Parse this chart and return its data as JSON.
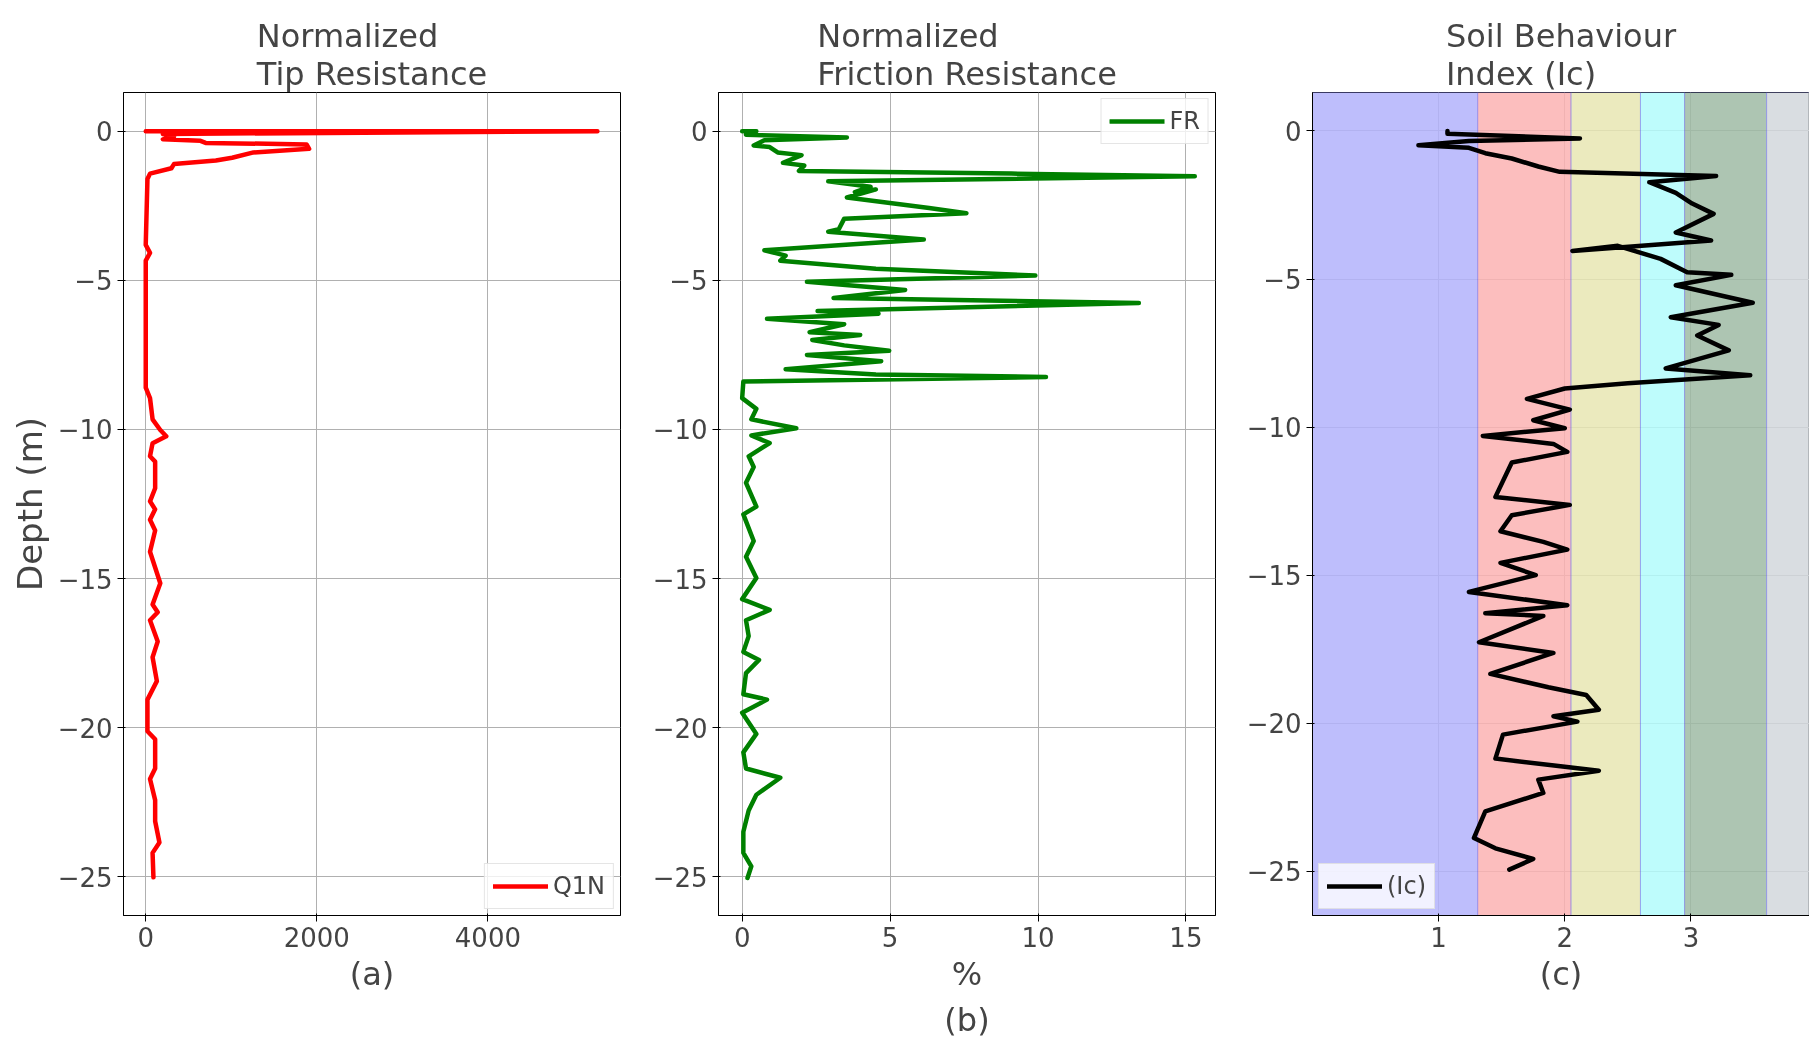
{
  "chart_data": [
    {
      "type": "line",
      "title": "Normalized\nTip Resistance",
      "ylabel": "Depth (m)",
      "xlim": [
        -260,
        5550
      ],
      "xticks": [
        0,
        2000,
        4000
      ],
      "ylim": [
        -26.3,
        1.3
      ],
      "yticks": [
        0,
        {
          "value": -5,
          "label": "−5"
        },
        {
          "value": -10,
          "label": "−10"
        },
        {
          "value": -15,
          "label": "−15"
        },
        {
          "value": -20,
          "label": "−20"
        },
        {
          "value": -25,
          "label": "−25"
        }
      ],
      "grid": true,
      "legend": "bottom right",
      "line_style": "solid",
      "marker": "none",
      "annotations": [
        "(a)"
      ],
      "series": [
        {
          "name": "Q1N",
          "color": "#ff0000",
          "x": [
            0,
            5280,
            200,
            330,
            200,
            640,
            700,
            1880,
            1910,
            1260,
            1010,
            820,
            330,
            300,
            50,
            20,
            0,
            50,
            0,
            0,
            50,
            80,
            170,
            240,
            80,
            50,
            110,
            110,
            50,
            110,
            50,
            110,
            50,
            110,
            170,
            80,
            140,
            50,
            140,
            80,
            130,
            20,
            20,
            110,
            110,
            50,
            110,
            110,
            160,
            80,
            90
          ],
          "values": [
            0,
            0,
            -0.09,
            -0.18,
            -0.27,
            -0.32,
            -0.39,
            -0.44,
            -0.59,
            -0.71,
            -0.89,
            -0.98,
            -1.1,
            -1.24,
            -1.42,
            -1.6,
            -3.81,
            -4.08,
            -4.34,
            -8.6,
            -8.95,
            -9.66,
            -10.02,
            -10.23,
            -10.46,
            -10.9,
            -11.08,
            -11.97,
            -12.41,
            -12.68,
            -13.03,
            -13.39,
            -14.1,
            -14.63,
            -15.16,
            -15.87,
            -16.13,
            -16.4,
            -17.11,
            -17.64,
            -18.44,
            -19.06,
            -20.12,
            -20.39,
            -21.37,
            -21.72,
            -22.43,
            -23.14,
            -23.85,
            -24.2,
            -25.02
          ]
        }
      ]
    },
    {
      "type": "line",
      "title": "Normalized\nFriction Resistance",
      "xlabel": "%",
      "xlim": [
        -0.8,
        16.0
      ],
      "xticks": [
        0,
        5,
        10,
        15
      ],
      "ylim": [
        -26.3,
        1.3
      ],
      "yticks": [
        0,
        {
          "value": -5,
          "label": "−5"
        },
        {
          "value": -10,
          "label": "−10"
        },
        {
          "value": -15,
          "label": "−15"
        },
        {
          "value": -20,
          "label": "−20"
        },
        {
          "value": -25,
          "label": "−25"
        }
      ],
      "grid": true,
      "legend": "top right",
      "line_style": "solid",
      "marker": "none",
      "annotations": [
        "(b)"
      ],
      "series": [
        {
          "name": "FR",
          "color": "#008000",
          "x": [
            0,
            0.48,
            0.13,
            3.54,
            0.75,
            0.39,
            0.93,
            1.2,
            2.01,
            1.38,
            2.1,
            1.92,
            9.1,
            15.3,
            2.91,
            4.34,
            3.81,
            4.52,
            3.54,
            6.32,
            7.58,
            3.45,
            3.27,
            2.91,
            6.14,
            0.75,
            1.47,
            1.29,
            4.52,
            9.91,
            2.19,
            5.51,
            3.09,
            13.41,
            2.55,
            4.61,
            0.84,
            3.45,
            2.28,
            3.99,
            2.37,
            3.45,
            4.97,
            2.19,
            4.7,
            1.47,
            4.52,
            10.27,
            0.04,
            0,
            0.48,
            0.31,
            1.83,
            0.31,
            0.93,
            0.22,
            0.39,
            0.13,
            0.48,
            0.04,
            0.39,
            0.13,
            0.48,
            0,
            0.93,
            0.13,
            0.22,
            0.04,
            0.57,
            0.13,
            0.04,
            0.84,
            0,
            0.48,
            0.04,
            0.13,
            1.29,
            0.48,
            0.22,
            0.04,
            0.04,
            0.31,
            0.18
          ],
          "values": [
            0,
            0,
            -0.12,
            -0.21,
            -0.3,
            -0.48,
            -0.53,
            -0.71,
            -0.8,
            -1.06,
            -1.15,
            -1.33,
            -1.42,
            -1.51,
            -1.68,
            -1.86,
            -2.04,
            -1.95,
            -2.22,
            -2.57,
            -2.75,
            -2.93,
            -3.28,
            -3.37,
            -3.63,
            -3.99,
            -4.17,
            -4.34,
            -4.61,
            -4.84,
            -5.05,
            -5.32,
            -5.59,
            -5.76,
            -6.03,
            -6.12,
            -6.29,
            -6.47,
            -6.74,
            -6.83,
            -7.0,
            -7.18,
            -7.36,
            -7.5,
            -7.71,
            -7.98,
            -8.16,
            -8.24,
            -8.39,
            -8.95,
            -9.31,
            -9.66,
            -9.96,
            -10.2,
            -10.46,
            -10.9,
            -11.26,
            -11.79,
            -12.59,
            -12.85,
            -13.74,
            -14.27,
            -14.98,
            -15.69,
            -16.05,
            -16.4,
            -16.93,
            -17.46,
            -17.73,
            -18.17,
            -18.88,
            -19.06,
            -19.5,
            -20.21,
            -20.83,
            -21.37,
            -21.68,
            -22.25,
            -22.78,
            -23.49,
            -24.2,
            -24.65,
            -25.04
          ]
        }
      ]
    },
    {
      "type": "line",
      "title": "Soil Behaviour\nIndex (Ic)",
      "xlim": [
        0.0,
        3.94
      ],
      "xticks": [
        1,
        2,
        3
      ],
      "ylim": [
        -26.5,
        1.3
      ],
      "yticks": [
        0,
        {
          "value": -5,
          "label": "−5"
        },
        {
          "value": -10,
          "label": "−10"
        },
        {
          "value": -15,
          "label": "−15"
        },
        {
          "value": -20,
          "label": "−20"
        },
        {
          "value": -25,
          "label": "−25"
        }
      ],
      "grid": true,
      "legend": "bottom left",
      "line_style": "solid",
      "marker": "none",
      "annotations": [
        "(c)"
      ],
      "bands": [
        {
          "axis": "x",
          "from": 0.0,
          "to": 1.31,
          "color": "#b3b3fb"
        },
        {
          "axis": "x",
          "from": 1.31,
          "to": 2.05,
          "color": "#fbb3b3"
        },
        {
          "axis": "x",
          "from": 2.05,
          "to": 2.6,
          "color": "#e8e6b3"
        },
        {
          "axis": "x",
          "from": 2.6,
          "to": 2.95,
          "color": "#b3fbfb"
        },
        {
          "axis": "x",
          "from": 2.95,
          "to": 3.6,
          "color": "#9fbba5"
        },
        {
          "axis": "x",
          "from": 3.6,
          "to": 3.94,
          "color": "#d2d7dc"
        }
      ],
      "series": [
        {
          "name": "(Ic)",
          "color": "#000000",
          "x": [
            1.07,
            1.07,
            2.12,
            1.24,
            0.84,
            1.24,
            1.37,
            1.58,
            1.79,
            1.96,
            3.2,
            2.67,
            2.88,
            3.01,
            3.18,
            2.88,
            3.16,
            2.06,
            2.42,
            2.76,
            2.97,
            3.32,
            2.88,
            3.49,
            2.84,
            3.22,
            3.05,
            3.3,
            2.8,
            3.47,
            2.5,
            2.0,
            1.7,
            2.04,
            1.75,
            2.0,
            1.35,
            1.91,
            2.02,
            1.58,
            1.45,
            2.04,
            1.58,
            1.49,
            1.83,
            2.02,
            1.49,
            1.77,
            1.24,
            2.02,
            1.37,
            1.83,
            1.32,
            1.91,
            1.41,
            1.87,
            2.17,
            2.27,
            1.91,
            2.1,
            1.51,
            1.45,
            2.27,
            1.79,
            1.83,
            1.37,
            1.28,
            1.45,
            1.75,
            1.56
          ],
          "values": [
            0,
            -0.09,
            -0.25,
            -0.34,
            -0.48,
            -0.57,
            -0.75,
            -0.93,
            -1.2,
            -1.38,
            -1.52,
            -1.73,
            -2.09,
            -2.45,
            -2.8,
            -3.43,
            -3.7,
            -4.05,
            -3.88,
            -4.32,
            -4.77,
            -4.86,
            -5.21,
            -5.8,
            -6.29,
            -6.55,
            -6.91,
            -7.41,
            -8.02,
            -8.25,
            -8.52,
            -8.7,
            -9.05,
            -9.41,
            -9.77,
            -10.04,
            -10.3,
            -10.57,
            -10.84,
            -11.2,
            -12.36,
            -12.63,
            -12.98,
            -13.52,
            -13.88,
            -14.14,
            -14.59,
            -15.0,
            -15.57,
            -16.02,
            -16.29,
            -16.38,
            -17.27,
            -17.63,
            -18.34,
            -18.79,
            -19.05,
            -19.55,
            -19.77,
            -19.95,
            -20.39,
            -21.2,
            -21.61,
            -21.91,
            -22.36,
            -22.98,
            -23.88,
            -24.23,
            -24.59,
            -24.95
          ]
        }
      ]
    }
  ]
}
